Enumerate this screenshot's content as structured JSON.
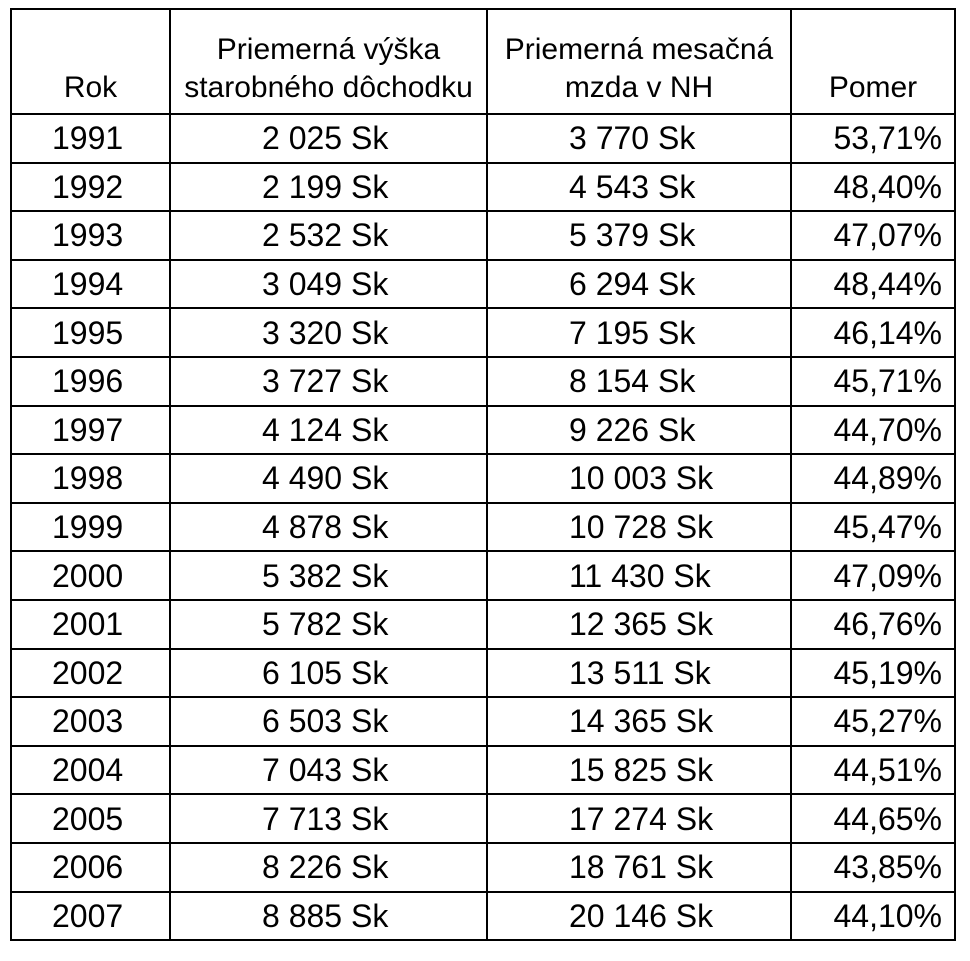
{
  "table": {
    "headers": {
      "year": "Rok",
      "pension": [
        "Priemerná výška",
        "starobného dôchodku"
      ],
      "wage": [
        "Priemerná mesačná",
        "mzda v NH"
      ],
      "ratio": "Pomer"
    },
    "rows": [
      {
        "year": "1991",
        "pension": "2 025 Sk",
        "wage": "3 770 Sk",
        "ratio": "53,71%"
      },
      {
        "year": "1992",
        "pension": "2 199 Sk",
        "wage": "4 543 Sk",
        "ratio": "48,40%"
      },
      {
        "year": "1993",
        "pension": "2 532 Sk",
        "wage": "5 379 Sk",
        "ratio": "47,07%"
      },
      {
        "year": "1994",
        "pension": "3 049 Sk",
        "wage": "6 294 Sk",
        "ratio": "48,44%"
      },
      {
        "year": "1995",
        "pension": "3 320 Sk",
        "wage": "7 195 Sk",
        "ratio": "46,14%"
      },
      {
        "year": "1996",
        "pension": "3 727 Sk",
        "wage": "8 154 Sk",
        "ratio": "45,71%"
      },
      {
        "year": "1997",
        "pension": "4 124 Sk",
        "wage": "9 226 Sk",
        "ratio": "44,70%"
      },
      {
        "year": "1998",
        "pension": "4 490 Sk",
        "wage": "10 003 Sk",
        "ratio": "44,89%"
      },
      {
        "year": "1999",
        "pension": "4 878 Sk",
        "wage": "10 728 Sk",
        "ratio": "45,47%"
      },
      {
        "year": "2000",
        "pension": "5 382 Sk",
        "wage": "11 430 Sk",
        "ratio": "47,09%"
      },
      {
        "year": "2001",
        "pension": "5 782 Sk",
        "wage": "12 365 Sk",
        "ratio": "46,76%"
      },
      {
        "year": "2002",
        "pension": "6 105 Sk",
        "wage": "13 511 Sk",
        "ratio": "45,19%"
      },
      {
        "year": "2003",
        "pension": "6 503 Sk",
        "wage": "14 365 Sk",
        "ratio": "45,27%"
      },
      {
        "year": "2004",
        "pension": "7 043 Sk",
        "wage": "15 825 Sk",
        "ratio": "44,51%"
      },
      {
        "year": "2005",
        "pension": "7 713 Sk",
        "wage": "17 274 Sk",
        "ratio": "44,65%"
      },
      {
        "year": "2006",
        "pension": "8 226 Sk",
        "wage": "18 761 Sk",
        "ratio": "43,85%"
      },
      {
        "year": "2007",
        "pension": "8 885 Sk",
        "wage": "20 146 Sk",
        "ratio": "44,10%"
      }
    ]
  }
}
